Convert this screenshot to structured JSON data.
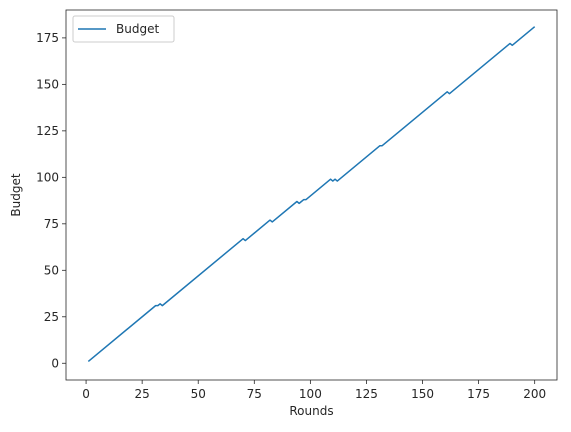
{
  "chart_data": {
    "type": "line",
    "title": "",
    "xlabel": "Rounds",
    "ylabel": "Budget",
    "xlim": [
      -8.95,
      209.95
    ],
    "ylim": [
      -9.0,
      190.0
    ],
    "xticks": [
      0,
      25,
      50,
      75,
      100,
      125,
      150,
      175,
      200
    ],
    "yticks": [
      0,
      25,
      50,
      75,
      100,
      125,
      150,
      175
    ],
    "grid": false,
    "legend": {
      "position": "top-left"
    },
    "series": [
      {
        "name": "Budget",
        "color": "#1f77b4",
        "x": [
          1,
          30,
          31,
          32,
          33,
          34,
          69,
          70,
          71,
          72,
          82,
          83,
          94,
          95,
          96,
          97,
          98,
          109,
          110,
          111,
          112,
          113,
          130,
          131,
          132,
          161,
          162,
          163,
          188,
          189,
          190,
          200
        ],
        "y": [
          1,
          30,
          31,
          31,
          32,
          31,
          66,
          67,
          66,
          67,
          77,
          76,
          87,
          86,
          87,
          88,
          88,
          99,
          98,
          99,
          98,
          99,
          116,
          117,
          117,
          146,
          145,
          146,
          171,
          172,
          171,
          181
        ]
      }
    ]
  }
}
